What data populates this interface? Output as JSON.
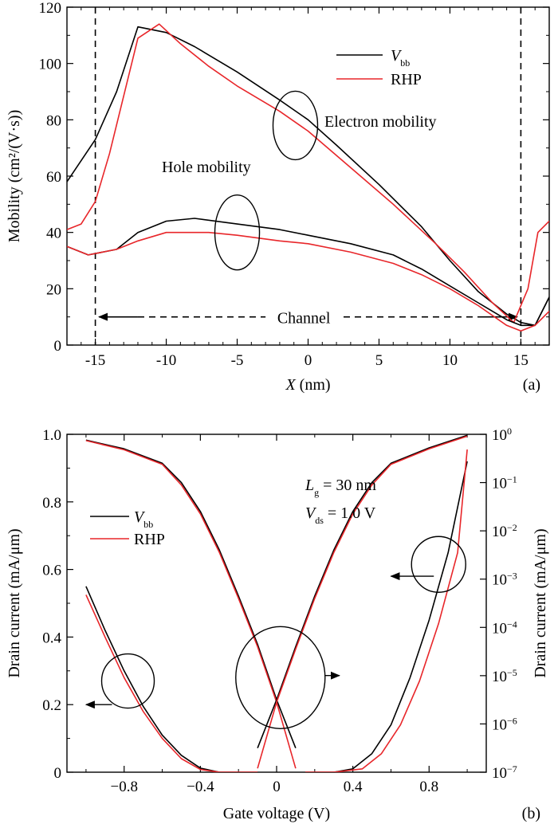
{
  "chart_data": [
    {
      "panel": "(a)",
      "type": "line",
      "xlabel": {
        "var": "X",
        "unit": " (nm)"
      },
      "ylabel": "Mobility (cm²/(V·s))",
      "xlim": [
        -17,
        17
      ],
      "ylim": [
        0,
        120
      ],
      "xticks": [
        -15,
        -10,
        -5,
        0,
        5,
        10,
        15
      ],
      "yticks": [
        0,
        20,
        40,
        60,
        80,
        100,
        120
      ],
      "colors": {
        "Vbb": "#000000",
        "RHP": "#e8262a"
      },
      "legend": {
        "placement": "top-right",
        "entries": [
          {
            "key": "Vbb",
            "main": "V",
            "sub": "bb"
          },
          {
            "key": "RHP",
            "main": "RHP",
            "sub": ""
          }
        ]
      },
      "annotations": {
        "electron": "Electron mobility",
        "hole": "Hole mobility",
        "channel": "Channel"
      },
      "channel_bounds": [
        -15,
        15
      ],
      "channel_arrow_y": 10,
      "series": [
        {
          "name": "Vbb",
          "group": "electron",
          "points": [
            [
              -17,
              58
            ],
            [
              -15,
              73
            ],
            [
              -13.5,
              90
            ],
            [
              -12,
              113
            ],
            [
              -10,
              111
            ],
            [
              -8,
              106
            ],
            [
              -5,
              97
            ],
            [
              -2,
              87
            ],
            [
              0,
              80
            ],
            [
              2,
              71
            ],
            [
              5,
              57
            ],
            [
              8,
              42
            ],
            [
              10,
              30
            ],
            [
              12,
              19
            ],
            [
              14,
              11
            ],
            [
              15,
              8
            ],
            [
              16,
              7
            ],
            [
              17,
              17
            ]
          ]
        },
        {
          "name": "RHP",
          "group": "electron",
          "points": [
            [
              -17,
              41
            ],
            [
              -16,
              43
            ],
            [
              -15,
              51
            ],
            [
              -14,
              68
            ],
            [
              -12,
              109
            ],
            [
              -10.5,
              114
            ],
            [
              -9,
              107
            ],
            [
              -7,
              99
            ],
            [
              -5,
              92
            ],
            [
              -2,
              83
            ],
            [
              0,
              76
            ],
            [
              3,
              63
            ],
            [
              6,
              50
            ],
            [
              9,
              36
            ],
            [
              11,
              26
            ],
            [
              13,
              15
            ],
            [
              14.5,
              8
            ],
            [
              15.5,
              20
            ],
            [
              16.2,
              40
            ],
            [
              17,
              44
            ]
          ]
        },
        {
          "name": "Vbb",
          "group": "hole",
          "points": [
            [
              -17,
              35
            ],
            [
              -15.5,
              32
            ],
            [
              -13.5,
              34
            ],
            [
              -12,
              40
            ],
            [
              -10,
              44
            ],
            [
              -8,
              45
            ],
            [
              -5,
              43
            ],
            [
              -2,
              41
            ],
            [
              0,
              39
            ],
            [
              3,
              36
            ],
            [
              6,
              32
            ],
            [
              8,
              27
            ],
            [
              10,
              21
            ],
            [
              12,
              15
            ],
            [
              14,
              9
            ],
            [
              15,
              7
            ],
            [
              16,
              7
            ],
            [
              17,
              17
            ]
          ]
        },
        {
          "name": "RHP",
          "group": "hole",
          "points": [
            [
              -17,
              35
            ],
            [
              -15.5,
              32
            ],
            [
              -13.5,
              34
            ],
            [
              -12,
              37
            ],
            [
              -10,
              40
            ],
            [
              -7,
              40
            ],
            [
              -5,
              39
            ],
            [
              -2,
              37
            ],
            [
              0,
              36
            ],
            [
              3,
              33
            ],
            [
              6,
              29
            ],
            [
              8,
              25
            ],
            [
              10,
              20
            ],
            [
              12,
              14
            ],
            [
              14,
              7
            ],
            [
              15,
              5
            ],
            [
              16,
              7
            ],
            [
              17,
              12
            ]
          ]
        }
      ]
    },
    {
      "panel": "(b)",
      "type": "line",
      "xlabel": {
        "var": "",
        "unit": "Gate voltage (V)"
      },
      "ylabel": "Drain current (mA/μm)",
      "ylabel_right": "Drain current (mA/μm)",
      "xlim": [
        -1.1,
        1.1
      ],
      "ylim": [
        0,
        1.0
      ],
      "ylim_right_log": [
        -7,
        0
      ],
      "xticks": [
        -0.8,
        -0.4,
        0,
        0.4,
        0.8
      ],
      "xtick_labels": [
        "−0.8",
        "−0.4",
        "0",
        "0.4",
        "0.8"
      ],
      "yticks": [
        0,
        0.2,
        0.4,
        0.6,
        0.8,
        1.0
      ],
      "ytick_labels": [
        "0",
        "0.2",
        "0.4",
        "0.6",
        "0.8",
        "1.0"
      ],
      "yticks_right_exp": [
        0,
        -1,
        -2,
        -3,
        -4,
        -5,
        -6,
        -7
      ],
      "colors": {
        "Vbb": "#000000",
        "RHP": "#e8262a"
      },
      "legend": {
        "placement": "middle-left",
        "entries": [
          {
            "key": "Vbb",
            "main": "V",
            "sub": "bb"
          },
          {
            "key": "RHP",
            "main": "RHP",
            "sub": ""
          }
        ]
      },
      "annotations": [
        {
          "main": "L",
          "sub": "g",
          "rest": " = 30 nm"
        },
        {
          "main": "V",
          "sub": "ds",
          "rest": " = 1.0 V"
        }
      ],
      "series": [
        {
          "name": "Vbb",
          "axis": "left",
          "branch": "p-linear",
          "points": [
            [
              -1.0,
              0.55
            ],
            [
              -0.9,
              0.42
            ],
            [
              -0.8,
              0.3
            ],
            [
              -0.7,
              0.195
            ],
            [
              -0.6,
              0.11
            ],
            [
              -0.5,
              0.05
            ],
            [
              -0.4,
              0.012
            ],
            [
              -0.3,
              0
            ],
            [
              -0.1,
              0
            ]
          ]
        },
        {
          "name": "RHP",
          "axis": "left",
          "branch": "p-linear",
          "points": [
            [
              -1.0,
              0.525
            ],
            [
              -0.9,
              0.4
            ],
            [
              -0.8,
              0.28
            ],
            [
              -0.7,
              0.18
            ],
            [
              -0.6,
              0.1
            ],
            [
              -0.5,
              0.04
            ],
            [
              -0.4,
              0.008
            ],
            [
              -0.3,
              0
            ],
            [
              -0.1,
              0
            ]
          ]
        },
        {
          "name": "Vbb",
          "axis": "left",
          "branch": "n-linear",
          "points": [
            [
              0.15,
              0
            ],
            [
              0.3,
              0
            ],
            [
              0.4,
              0.01
            ],
            [
              0.5,
              0.055
            ],
            [
              0.6,
              0.14
            ],
            [
              0.7,
              0.28
            ],
            [
              0.8,
              0.45
            ],
            [
              0.9,
              0.65
            ],
            [
              1.0,
              0.92
            ]
          ]
        },
        {
          "name": "RHP",
          "axis": "left",
          "branch": "n-linear",
          "points": [
            [
              0.15,
              0
            ],
            [
              0.3,
              0
            ],
            [
              0.45,
              0.01
            ],
            [
              0.55,
              0.055
            ],
            [
              0.65,
              0.14
            ],
            [
              0.75,
              0.27
            ],
            [
              0.85,
              0.44
            ],
            [
              0.95,
              0.65
            ],
            [
              1.0,
              0.955
            ]
          ]
        },
        {
          "name": "Vbb",
          "axis": "right",
          "branch": "p-log",
          "points": [
            [
              -1.0,
              -0.12
            ],
            [
              -0.8,
              -0.3
            ],
            [
              -0.6,
              -0.6
            ],
            [
              -0.5,
              -1.0
            ],
            [
              -0.4,
              -1.6
            ],
            [
              -0.3,
              -2.4
            ],
            [
              -0.2,
              -3.35
            ],
            [
              -0.1,
              -4.35
            ],
            [
              0,
              -5.5
            ],
            [
              0.1,
              -6.5
            ]
          ]
        },
        {
          "name": "RHP",
          "axis": "right",
          "branch": "p-log",
          "points": [
            [
              -1.0,
              -0.13
            ],
            [
              -0.8,
              -0.32
            ],
            [
              -0.6,
              -0.62
            ],
            [
              -0.5,
              -1.05
            ],
            [
              -0.4,
              -1.65
            ],
            [
              -0.3,
              -2.45
            ],
            [
              -0.2,
              -3.4
            ],
            [
              -0.1,
              -4.4
            ],
            [
              0,
              -5.55
            ],
            [
              0.1,
              -6.92
            ]
          ]
        },
        {
          "name": "Vbb",
          "axis": "right",
          "branch": "n-log",
          "points": [
            [
              -0.1,
              -6.5
            ],
            [
              0,
              -5.5
            ],
            [
              0.1,
              -4.4
            ],
            [
              0.2,
              -3.35
            ],
            [
              0.3,
              -2.4
            ],
            [
              0.4,
              -1.6
            ],
            [
              0.5,
              -1.0
            ],
            [
              0.6,
              -0.6
            ],
            [
              0.8,
              -0.28
            ],
            [
              1.0,
              -0.02
            ]
          ]
        },
        {
          "name": "RHP",
          "axis": "right",
          "branch": "n-log",
          "points": [
            [
              -0.1,
              -6.92
            ],
            [
              0,
              -5.55
            ],
            [
              0.1,
              -4.45
            ],
            [
              0.2,
              -3.4
            ],
            [
              0.3,
              -2.45
            ],
            [
              0.4,
              -1.65
            ],
            [
              0.5,
              -1.05
            ],
            [
              0.6,
              -0.62
            ],
            [
              0.8,
              -0.3
            ],
            [
              1.0,
              -0.04
            ]
          ]
        }
      ]
    }
  ]
}
